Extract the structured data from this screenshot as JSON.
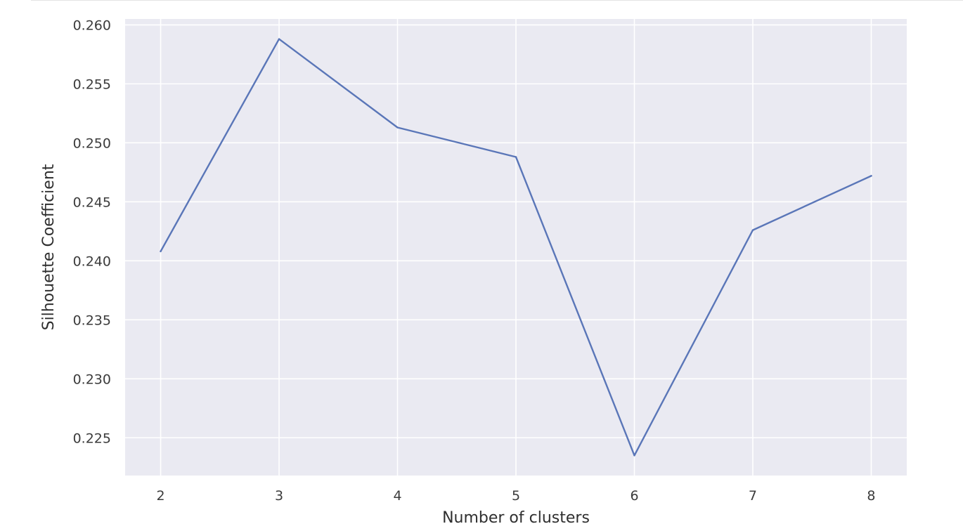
{
  "chart_data": {
    "type": "line",
    "title": "",
    "xlabel": "Number of clusters",
    "ylabel": "Silhouette Coefficient",
    "x": [
      2,
      3,
      4,
      5,
      6,
      7,
      8
    ],
    "series": [
      {
        "values": [
          0.2408,
          0.2588,
          0.2513,
          0.2488,
          0.2235,
          0.2426,
          0.2472
        ],
        "color": "#5a76b8"
      }
    ],
    "xlim": [
      1.7,
      8.3
    ],
    "ylim": [
      0.2218,
      0.2605
    ],
    "xticks": [
      2,
      3,
      4,
      5,
      6,
      7,
      8
    ],
    "xtick_labels": [
      "2",
      "3",
      "4",
      "5",
      "6",
      "7",
      "8"
    ],
    "yticks": [
      0.225,
      0.23,
      0.235,
      0.24,
      0.245,
      0.25,
      0.255,
      0.26
    ],
    "ytick_labels": [
      "0.225",
      "0.230",
      "0.235",
      "0.240",
      "0.245",
      "0.250",
      "0.255",
      "0.260"
    ],
    "grid": true,
    "style": {
      "plot_background": "#eaeaf2",
      "grid_color": "#ffffff",
      "line_color": "#5a76b8"
    }
  }
}
